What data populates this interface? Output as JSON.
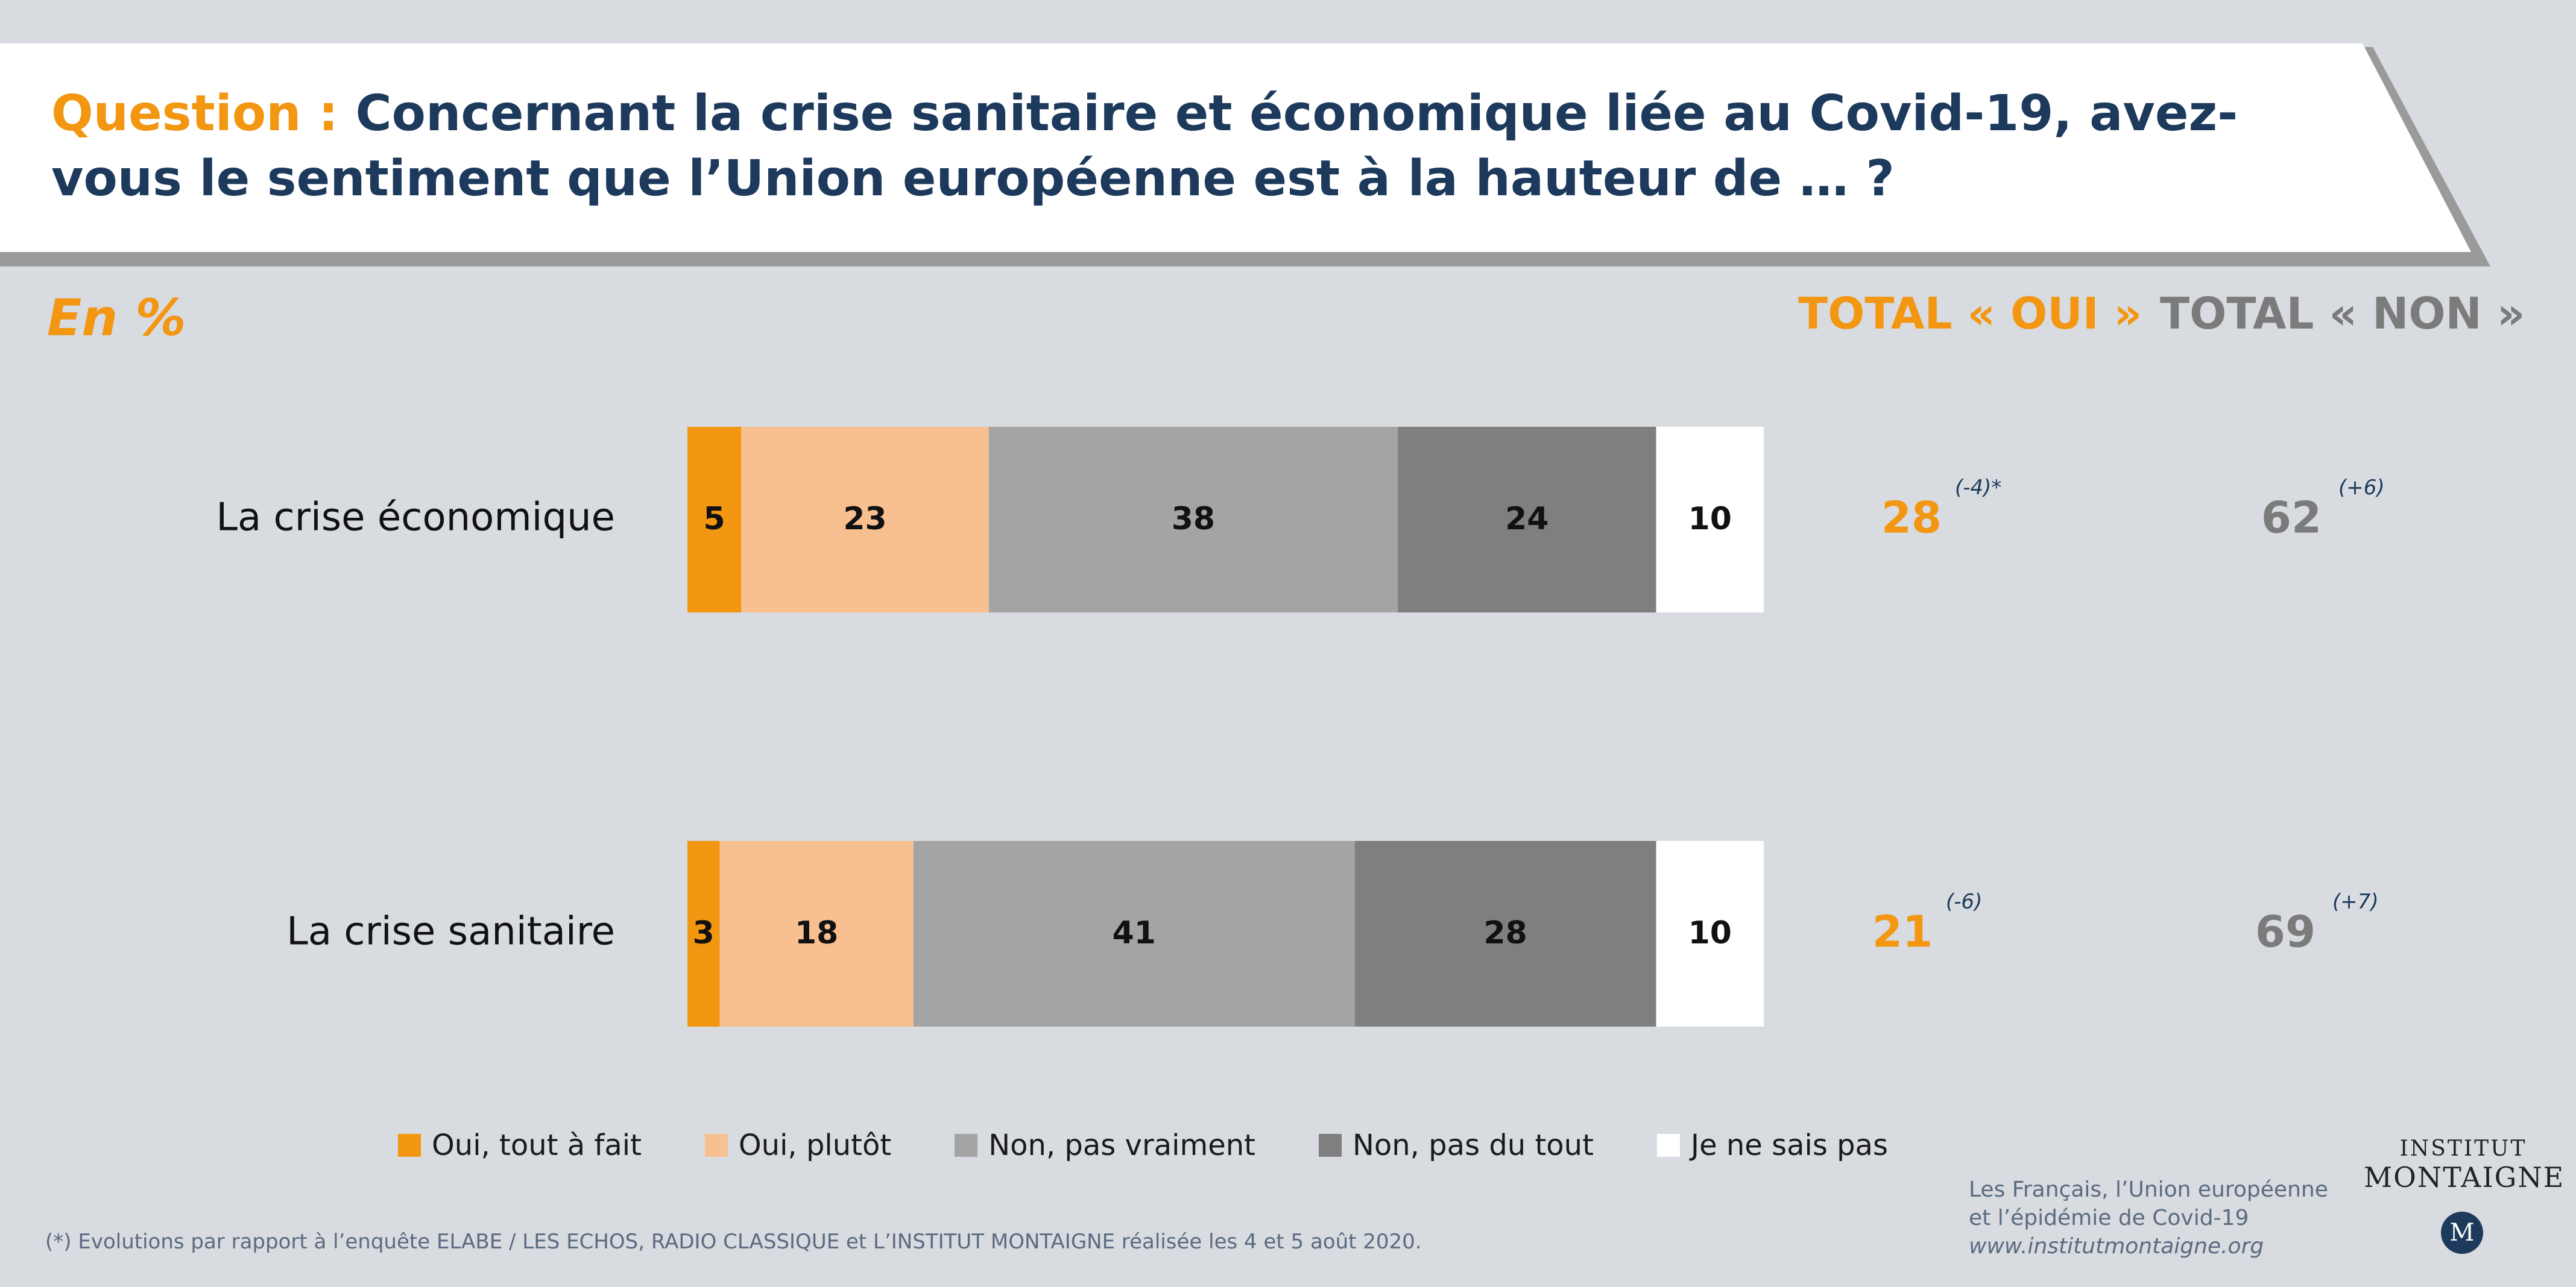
{
  "title": {
    "prefix": "Question :",
    "text": "Concernant la crise sanitaire et économique liée au Covid-19, avez-vous le sentiment que l’Union européenne est à la hauteur de … ?"
  },
  "unit_label": "En %",
  "columns": {
    "total_oui": "TOTAL « OUI »",
    "total_non": "TOTAL « NON »"
  },
  "colors": {
    "oui_tout_a_fait": "#f39611",
    "oui_plutot": "#f8c091",
    "non_pas_vraiment": "#a5a4a4",
    "non_pas_du_tout": "#7f7f7f",
    "nsp": "#ffffff",
    "oui_text": "#f39611",
    "non_text": "#7b7b7b",
    "title": "#1d3a5c"
  },
  "chart_data": {
    "type": "bar",
    "orientation": "horizontal",
    "stacked": true,
    "categories": [
      "La crise économique",
      "La crise sanitaire"
    ],
    "series": [
      {
        "name": "Oui, tout à fait",
        "values": [
          5,
          3
        ]
      },
      {
        "name": "Oui, plutôt",
        "values": [
          23,
          18
        ]
      },
      {
        "name": "Non, pas vraiment",
        "values": [
          38,
          41
        ]
      },
      {
        "name": "Non, pas du tout",
        "values": [
          24,
          28
        ]
      },
      {
        "name": "Je ne sais pas",
        "values": [
          10,
          10
        ]
      }
    ],
    "totals": [
      {
        "oui": "28",
        "oui_change": "(-4)*",
        "non": "62",
        "non_change": "(+6)"
      },
      {
        "oui": "21",
        "oui_change": "(-6)",
        "non": "69",
        "non_change": "(+7)"
      }
    ],
    "xlim": [
      0,
      100
    ],
    "legend_position": "bottom"
  },
  "footnote": "(*) Evolutions par rapport à l’enquête ELABE / LES ECHOS, RADIO CLASSIQUE et L’INSTITUT MONTAIGNE réalisée les 4 et 5 août 2020.",
  "source": {
    "line1": "Les Français, l’Union européenne",
    "line2": "et l’épidémie de Covid-19",
    "url": "www.institutmontaigne.org"
  },
  "brand": {
    "line1": "INSTITUT",
    "line2": "MONTAIGNE",
    "logo": "M"
  }
}
